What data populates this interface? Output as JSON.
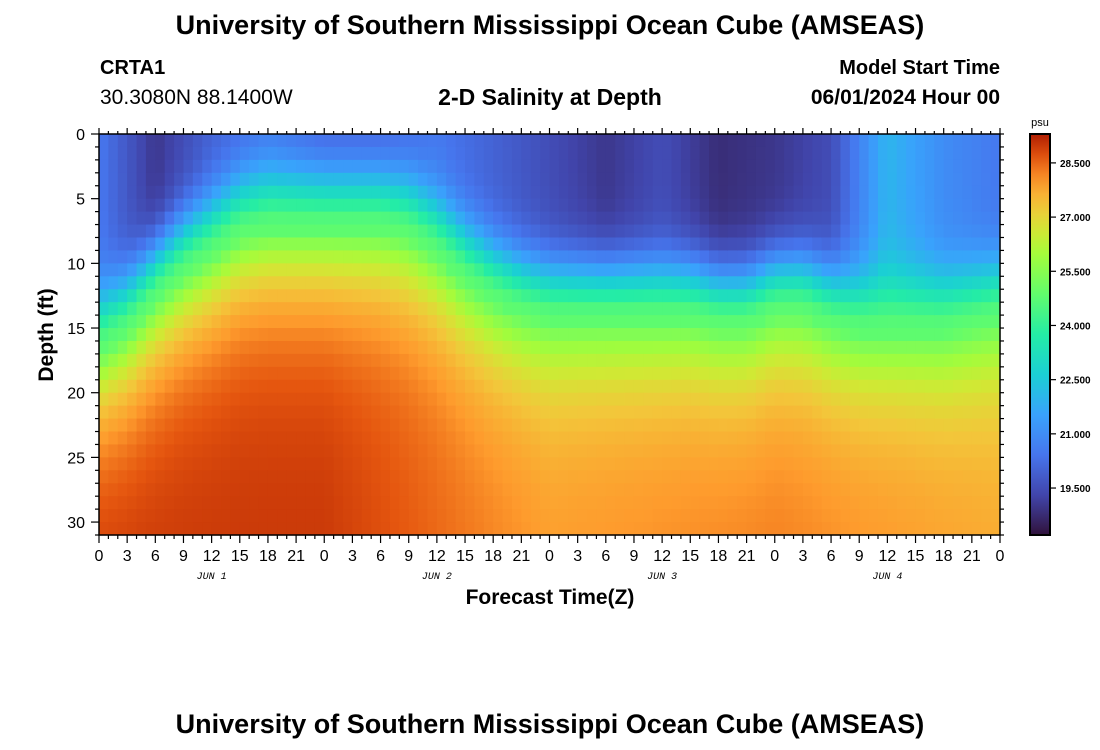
{
  "header": {
    "title": "University of Southern Mississippi Ocean Cube (AMSEAS)",
    "station_id": "CRTA1",
    "coordinates": "30.3080N  88.1400W",
    "chart_title": "2-D Salinity at Depth",
    "model_start_label": "Model Start Time",
    "model_start_value": "06/01/2024 Hour 00"
  },
  "footer": {
    "title": "University of Southern Mississippi Ocean Cube (AMSEAS)"
  },
  "chart_data": {
    "type": "heatmap",
    "title": "2-D Salinity at Depth",
    "xlabel": "Forecast Time(Z)",
    "ylabel": "Depth (ft)",
    "x_unit": "hours since 06/01/2024 00Z",
    "xlim": [
      0,
      96
    ],
    "ylim": [
      0,
      31
    ],
    "y_inverted": true,
    "x_ticks": [
      0,
      3,
      6,
      9,
      12,
      15,
      18,
      21,
      24,
      27,
      30,
      33,
      36,
      39,
      42,
      45,
      48,
      51,
      54,
      57,
      60,
      63,
      66,
      69,
      72,
      75,
      78,
      81,
      84,
      87,
      90,
      93,
      96
    ],
    "x_tick_labels": [
      "0",
      "3",
      "6",
      "9",
      "12",
      "15",
      "18",
      "21",
      "0",
      "3",
      "6",
      "9",
      "12",
      "15",
      "18",
      "21",
      "0",
      "3",
      "6",
      "9",
      "12",
      "15",
      "18",
      "21",
      "0",
      "3",
      "6",
      "9",
      "12",
      "15",
      "18",
      "21",
      "0"
    ],
    "y_ticks": [
      0,
      5,
      10,
      15,
      20,
      25,
      30
    ],
    "y_tick_labels": [
      "0",
      "5",
      "10",
      "15",
      "20",
      "25",
      "30"
    ],
    "day_labels": [
      {
        "hour": 12,
        "label": "JUN 1"
      },
      {
        "hour": 36,
        "label": "JUN 2"
      },
      {
        "hour": 60,
        "label": "JUN 3"
      },
      {
        "hour": 84,
        "label": "JUN 4"
      }
    ],
    "colorbar": {
      "unit": "psu",
      "min": 18.2,
      "max": 29.3,
      "ticks": [
        28.5,
        27.0,
        25.5,
        24.0,
        22.5,
        21.0,
        19.5
      ],
      "tick_labels": [
        "28.500",
        "27.000",
        "25.500",
        "24.000",
        "22.500",
        "21.000",
        "19.500"
      ]
    },
    "halocline_depth_ft": [
      {
        "hour": 0,
        "depth": 17.0
      },
      {
        "hour": 3,
        "depth": 15.5
      },
      {
        "hour": 6,
        "depth": 13.0
      },
      {
        "hour": 9,
        "depth": 11.0
      },
      {
        "hour": 12,
        "depth": 9.5
      },
      {
        "hour": 15,
        "depth": 8.0
      },
      {
        "hour": 18,
        "depth": 7.5
      },
      {
        "hour": 21,
        "depth": 7.5
      },
      {
        "hour": 24,
        "depth": 7.5
      },
      {
        "hour": 27,
        "depth": 7.5
      },
      {
        "hour": 30,
        "depth": 7.5
      },
      {
        "hour": 33,
        "depth": 8.0
      },
      {
        "hour": 36,
        "depth": 9.5
      },
      {
        "hour": 39,
        "depth": 11.5
      },
      {
        "hour": 42,
        "depth": 13.0
      },
      {
        "hour": 45,
        "depth": 14.0
      },
      {
        "hour": 48,
        "depth": 14.5
      },
      {
        "hour": 51,
        "depth": 14.5
      },
      {
        "hour": 54,
        "depth": 14.5
      },
      {
        "hour": 57,
        "depth": 14.5
      },
      {
        "hour": 60,
        "depth": 14.5
      },
      {
        "hour": 63,
        "depth": 14.5
      },
      {
        "hour": 66,
        "depth": 15.0
      },
      {
        "hour": 69,
        "depth": 15.0
      },
      {
        "hour": 72,
        "depth": 14.0
      },
      {
        "hour": 75,
        "depth": 14.0
      },
      {
        "hour": 78,
        "depth": 15.0
      },
      {
        "hour": 81,
        "depth": 15.5
      },
      {
        "hour": 84,
        "depth": 15.5
      },
      {
        "hour": 87,
        "depth": 15.5
      },
      {
        "hour": 90,
        "depth": 15.5
      },
      {
        "hour": 93,
        "depth": 15.0
      },
      {
        "hour": 96,
        "depth": 14.5
      }
    ],
    "surface_salinity_psu": [
      {
        "hour": 0,
        "value": 20.5
      },
      {
        "hour": 6,
        "value": 19.0
      },
      {
        "hour": 12,
        "value": 20.0
      },
      {
        "hour": 18,
        "value": 20.5
      },
      {
        "hour": 24,
        "value": 20.0
      },
      {
        "hour": 30,
        "value": 20.0
      },
      {
        "hour": 36,
        "value": 20.5
      },
      {
        "hour": 42,
        "value": 20.0
      },
      {
        "hour": 48,
        "value": 19.5
      },
      {
        "hour": 54,
        "value": 19.0
      },
      {
        "hour": 60,
        "value": 19.5
      },
      {
        "hour": 66,
        "value": 18.8
      },
      {
        "hour": 72,
        "value": 19.0
      },
      {
        "hour": 78,
        "value": 19.5
      },
      {
        "hour": 84,
        "value": 22.0
      },
      {
        "hour": 90,
        "value": 21.0
      },
      {
        "hour": 96,
        "value": 20.5
      }
    ],
    "bottom_salinity_psu": [
      {
        "hour": 0,
        "value": 29.0
      },
      {
        "hour": 24,
        "value": 29.0
      },
      {
        "hour": 48,
        "value": 28.0
      },
      {
        "hour": 72,
        "value": 28.3
      },
      {
        "hour": 96,
        "value": 27.8
      }
    ]
  }
}
